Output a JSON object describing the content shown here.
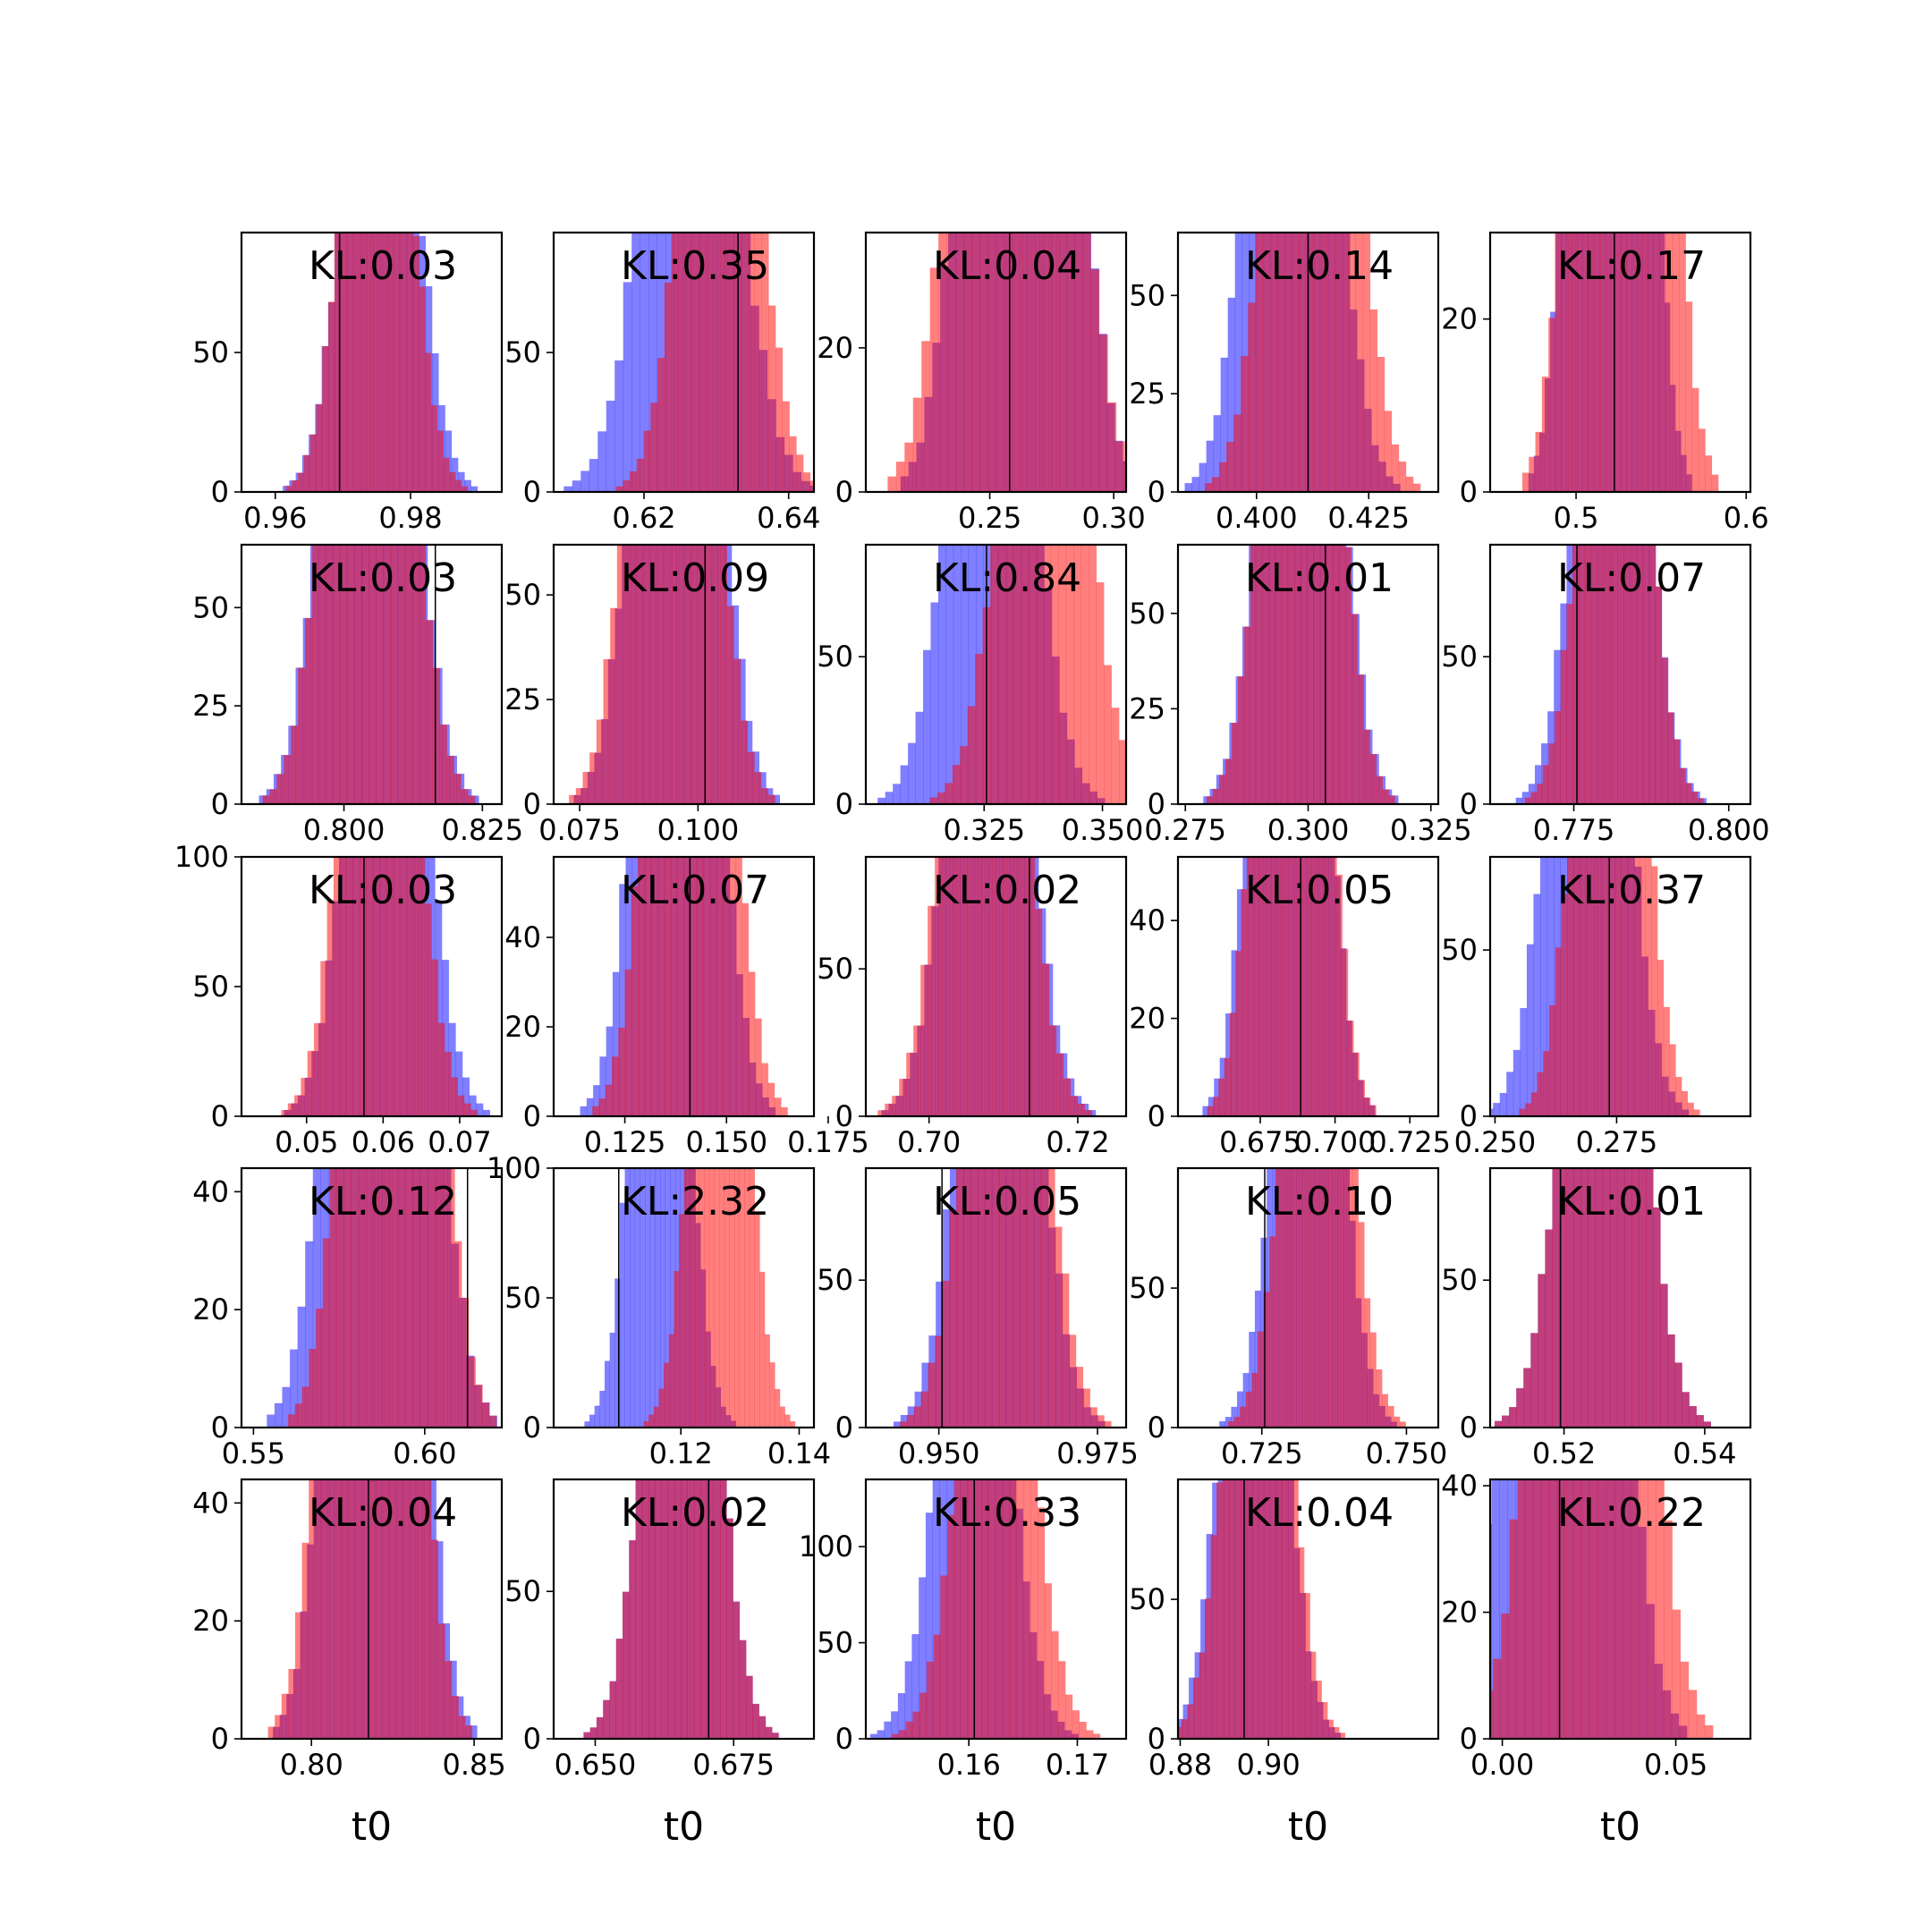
{
  "colors": {
    "blue": "#0000ff",
    "red": "#ff0000",
    "truth_line": "#000000",
    "axes": "#000000"
  },
  "chart_data": [
    {
      "type": "bar",
      "kl": "KL:0.03",
      "truth": 0.9695,
      "xlim": [
        0.955,
        0.9935
      ],
      "ylim": [
        0,
        93
      ],
      "xticks": [
        0.96,
        0.98
      ],
      "xtick_labels": [
        "0.96",
        "0.98"
      ],
      "yticks": [
        0,
        50
      ],
      "ytick_labels": [
        "0",
        "50"
      ],
      "blue": {
        "mu": 0.9755,
        "sd": 0.0045,
        "n": 3000
      },
      "red": {
        "mu": 0.975,
        "sd": 0.0042,
        "n": 3000
      }
    },
    {
      "type": "bar",
      "kl": "KL:0.35",
      "truth": 0.633,
      "xlim": [
        0.6075,
        0.6435
      ],
      "ylim": [
        0,
        93
      ],
      "xticks": [
        0.62,
        0.64
      ],
      "xtick_labels": [
        "0.62",
        "0.64"
      ],
      "yticks": [
        0,
        50
      ],
      "ytick_labels": [
        "0",
        "50"
      ],
      "blue": {
        "mu": 0.6265,
        "sd": 0.0055,
        "n": 3000
      },
      "red": {
        "mu": 0.6305,
        "sd": 0.0045,
        "n": 3000
      }
    },
    {
      "type": "bar",
      "kl": "KL:0.04",
      "truth": 0.258,
      "xlim": [
        0.2,
        0.305
      ],
      "ylim": [
        0,
        36
      ],
      "xticks": [
        0.25,
        0.3
      ],
      "xtick_labels": [
        "0.25",
        "0.30"
      ],
      "yticks": [
        0,
        20
      ],
      "ytick_labels": [
        "0",
        "20"
      ],
      "blue": {
        "mu": 0.262,
        "sd": 0.015,
        "n": 3000
      },
      "red": {
        "mu": 0.26,
        "sd": 0.016,
        "n": 3000
      }
    },
    {
      "type": "bar",
      "kl": "KL:0.14",
      "truth": 0.4115,
      "xlim": [
        0.3825,
        0.4405
      ],
      "ylim": [
        0,
        66
      ],
      "xticks": [
        0.4,
        0.425
      ],
      "xtick_labels": [
        "0.400",
        "0.425"
      ],
      "yticks": [
        0,
        25,
        50
      ],
      "ytick_labels": [
        "0",
        "25",
        "50"
      ],
      "blue": {
        "mu": 0.408,
        "sd": 0.0075,
        "n": 3000
      },
      "red": {
        "mu": 0.4125,
        "sd": 0.0075,
        "n": 3000
      }
    },
    {
      "type": "bar",
      "kl": "KL:0.17",
      "truth": 0.5225,
      "xlim": [
        0.4495,
        0.6025
      ],
      "ylim": [
        0,
        30
      ],
      "xticks": [
        0.5,
        0.6
      ],
      "xtick_labels": [
        "0.5",
        "0.6"
      ],
      "yticks": [
        0,
        20
      ],
      "ytick_labels": [
        "0",
        "20"
      ],
      "blue": {
        "mu": 0.52,
        "sd": 0.015,
        "n": 3000
      },
      "red": {
        "mu": 0.526,
        "sd": 0.018,
        "n": 3000
      }
    },
    {
      "type": "bar",
      "kl": "KL:0.03",
      "truth": 0.8165,
      "xlim": [
        0.7815,
        0.8285
      ],
      "ylim": [
        0,
        66
      ],
      "xticks": [
        0.8,
        0.825
      ],
      "xtick_labels": [
        "0.800",
        "0.825"
      ],
      "yticks": [
        0,
        25,
        50
      ],
      "ytick_labels": [
        "0",
        "25",
        "50"
      ],
      "blue": {
        "mu": 0.8045,
        "sd": 0.0062,
        "n": 3000
      },
      "red": {
        "mu": 0.8045,
        "sd": 0.006,
        "n": 3000
      }
    },
    {
      "type": "bar",
      "kl": "KL:0.09",
      "truth": 0.1015,
      "xlim": [
        0.0695,
        0.1245
      ],
      "ylim": [
        0,
        62
      ],
      "xticks": [
        0.075,
        0.1
      ],
      "xtick_labels": [
        "0.075",
        "0.100"
      ],
      "yticks": [
        0,
        25,
        50
      ],
      "ytick_labels": [
        "0",
        "25",
        "50"
      ],
      "blue": {
        "mu": 0.0955,
        "sd": 0.0068,
        "n": 3000
      },
      "red": {
        "mu": 0.0945,
        "sd": 0.0068,
        "n": 3000
      }
    },
    {
      "type": "bar",
      "kl": "KL:0.84",
      "truth": 0.3255,
      "xlim": [
        0.3,
        0.355
      ],
      "ylim": [
        0,
        88
      ],
      "xticks": [
        0.325,
        0.35
      ],
      "xtick_labels": [
        "0.325",
        "0.350"
      ],
      "yticks": [
        0,
        50
      ],
      "ytick_labels": [
        "0",
        "50"
      ],
      "blue": {
        "mu": 0.3265,
        "sd": 0.0075,
        "n": 3000
      },
      "red": {
        "mu": 0.3375,
        "sd": 0.0075,
        "n": 3000
      }
    },
    {
      "type": "bar",
      "kl": "KL:0.01",
      "truth": 0.3035,
      "xlim": [
        0.2735,
        0.3265
      ],
      "ylim": [
        0,
        68
      ],
      "xticks": [
        0.275,
        0.3,
        0.325
      ],
      "xtick_labels": [
        "0.275",
        "0.300",
        "0.325"
      ],
      "yticks": [
        0,
        25,
        50
      ],
      "ytick_labels": [
        "0",
        "25",
        "50"
      ],
      "blue": {
        "mu": 0.2985,
        "sd": 0.0062,
        "n": 3000
      },
      "red": {
        "mu": 0.2985,
        "sd": 0.006,
        "n": 3000
      }
    },
    {
      "type": "bar",
      "kl": "KL:0.07",
      "truth": 0.7755,
      "xlim": [
        0.7615,
        0.8035
      ],
      "ylim": [
        0,
        88
      ],
      "xticks": [
        0.775,
        0.8
      ],
      "xtick_labels": [
        "0.775",
        "0.800"
      ],
      "yticks": [
        0,
        50
      ],
      "ytick_labels": [
        "0",
        "50"
      ],
      "blue": {
        "mu": 0.781,
        "sd": 0.0048,
        "n": 3000
      },
      "red": {
        "mu": 0.7815,
        "sd": 0.0045,
        "n": 3000
      }
    },
    {
      "type": "bar",
      "kl": "KL:0.03",
      "truth": 0.0575,
      "xlim": [
        0.0415,
        0.0755
      ],
      "ylim": [
        0,
        100
      ],
      "xticks": [
        0.05,
        0.06,
        0.07
      ],
      "xtick_labels": [
        "0.05",
        "0.06",
        "0.07"
      ],
      "yticks": [
        0,
        50,
        100
      ],
      "ytick_labels": [
        "0",
        "50",
        "100"
      ],
      "blue": {
        "mu": 0.0605,
        "sd": 0.0042,
        "n": 3500
      },
      "red": {
        "mu": 0.0595,
        "sd": 0.004,
        "n": 3500
      }
    },
    {
      "type": "bar",
      "kl": "KL:0.07",
      "truth": 0.141,
      "xlim": [
        0.1075,
        0.1715
      ],
      "ylim": [
        0,
        58
      ],
      "xticks": [
        0.125,
        0.15,
        0.175
      ],
      "xtick_labels": [
        "0.125",
        "0.150",
        "0.175"
      ],
      "yticks": [
        0,
        20,
        40
      ],
      "ytick_labels": [
        "0",
        "20",
        "40"
      ],
      "blue": {
        "mu": 0.138,
        "sd": 0.0075,
        "n": 3000
      },
      "red": {
        "mu": 0.141,
        "sd": 0.0075,
        "n": 3000
      }
    },
    {
      "type": "bar",
      "kl": "KL:0.02",
      "truth": 0.7135,
      "xlim": [
        0.6915,
        0.7265
      ],
      "ylim": [
        0,
        88
      ],
      "xticks": [
        0.7,
        0.72
      ],
      "xtick_labels": [
        "0.70",
        "0.72"
      ],
      "yticks": [
        0,
        50
      ],
      "ytick_labels": [
        "0",
        "50"
      ],
      "blue": {
        "mu": 0.708,
        "sd": 0.0045,
        "n": 3000
      },
      "red": {
        "mu": 0.7075,
        "sd": 0.0045,
        "n": 3000
      }
    },
    {
      "type": "bar",
      "kl": "KL:0.05",
      "truth": 0.6885,
      "xlim": [
        0.6475,
        0.7345
      ],
      "ylim": [
        0,
        53
      ],
      "xticks": [
        0.675,
        0.7,
        0.725
      ],
      "xtick_labels": [
        "0.675",
        "0.700",
        "0.725"
      ],
      "yticks": [
        0,
        20,
        40
      ],
      "ytick_labels": [
        "0",
        "20",
        "40"
      ],
      "blue": {
        "mu": 0.6845,
        "sd": 0.009,
        "n": 3000
      },
      "red": {
        "mu": 0.6855,
        "sd": 0.0088,
        "n": 3000
      }
    },
    {
      "type": "bar",
      "kl": "KL:0.37",
      "truth": 0.2735,
      "xlim": [
        0.249,
        0.3025
      ],
      "ylim": [
        0,
        78
      ],
      "xticks": [
        0.25,
        0.275
      ],
      "xtick_labels": [
        "0.250",
        "0.275"
      ],
      "yticks": [
        0,
        50
      ],
      "ytick_labels": [
        "0",
        "50"
      ],
      "blue": {
        "mu": 0.269,
        "sd": 0.0065,
        "n": 3000
      },
      "red": {
        "mu": 0.2735,
        "sd": 0.0058,
        "n": 3000
      }
    },
    {
      "type": "bar",
      "kl": "KL:0.12",
      "truth": 0.6125,
      "xlim": [
        0.5465,
        0.6225
      ],
      "ylim": [
        0,
        44
      ],
      "xticks": [
        0.55,
        0.6
      ],
      "xtick_labels": [
        "0.55",
        "0.60"
      ],
      "yticks": [
        0,
        20,
        40
      ],
      "ytick_labels": [
        "0",
        "20",
        "40"
      ],
      "blue": {
        "mu": 0.5875,
        "sd": 0.0105,
        "n": 3000
      },
      "red": {
        "mu": 0.5905,
        "sd": 0.0095,
        "n": 3000
      }
    },
    {
      "type": "bar",
      "kl": "KL:2.32",
      "truth": 0.1095,
      "xlim": [
        0.0985,
        0.1425
      ],
      "ylim": [
        0,
        100
      ],
      "xticks": [
        0.12,
        0.14
      ],
      "xtick_labels": [
        "0.12",
        "0.14"
      ],
      "yticks": [
        0,
        50,
        100
      ],
      "ytick_labels": [
        "0",
        "50",
        "100"
      ],
      "blue": {
        "mu": 0.1165,
        "sd": 0.004,
        "n": 3500
      },
      "red": {
        "mu": 0.1265,
        "sd": 0.004,
        "n": 3500
      }
    },
    {
      "type": "bar",
      "kl": "KL:0.05",
      "truth": 0.9505,
      "xlim": [
        0.9385,
        0.9795
      ],
      "ylim": [
        0,
        88
      ],
      "xticks": [
        0.95,
        0.975
      ],
      "xtick_labels": [
        "0.950",
        "0.975"
      ],
      "yticks": [
        0,
        50
      ],
      "ytick_labels": [
        "0",
        "50"
      ],
      "blue": {
        "mu": 0.9595,
        "sd": 0.0052,
        "n": 3000
      },
      "red": {
        "mu": 0.9605,
        "sd": 0.0052,
        "n": 3000
      }
    },
    {
      "type": "bar",
      "kl": "KL:0.10",
      "truth": 0.7255,
      "xlim": [
        0.7105,
        0.7555
      ],
      "ylim": [
        0,
        93
      ],
      "xticks": [
        0.725,
        0.75
      ],
      "xtick_labels": [
        "0.725",
        "0.750"
      ],
      "yticks": [
        0,
        50
      ],
      "ytick_labels": [
        "0",
        "50"
      ],
      "blue": {
        "mu": 0.733,
        "sd": 0.0048,
        "n": 3000
      },
      "red": {
        "mu": 0.7345,
        "sd": 0.0048,
        "n": 3000
      }
    },
    {
      "type": "bar",
      "kl": "KL:0.01",
      "truth": 0.5195,
      "xlim": [
        0.5095,
        0.5465
      ],
      "ylim": [
        0,
        88
      ],
      "xticks": [
        0.52,
        0.54
      ],
      "xtick_labels": [
        "0.52",
        "0.54"
      ],
      "yticks": [
        0,
        50
      ],
      "ytick_labels": [
        "0",
        "50"
      ],
      "blue": {
        "mu": 0.5255,
        "sd": 0.0048,
        "n": 3000
      },
      "red": {
        "mu": 0.5255,
        "sd": 0.0048,
        "n": 3000
      }
    },
    {
      "type": "bar",
      "kl": "KL:0.04",
      "truth": 0.8175,
      "xlim": [
        0.7785,
        0.8585
      ],
      "ylim": [
        0,
        44
      ],
      "xticks": [
        0.8,
        0.85
      ],
      "xtick_labels": [
        "0.80",
        "0.85"
      ],
      "yticks": [
        0,
        20,
        40
      ],
      "ytick_labels": [
        "0",
        "20",
        "40"
      ],
      "blue": {
        "mu": 0.8195,
        "sd": 0.0098,
        "n": 3000
      },
      "red": {
        "mu": 0.818,
        "sd": 0.0098,
        "n": 3000
      }
    },
    {
      "type": "bar",
      "kl": "KL:0.02",
      "truth": 0.6705,
      "xlim": [
        0.6425,
        0.6895
      ],
      "ylim": [
        0,
        88
      ],
      "xticks": [
        0.65,
        0.675
      ],
      "xtick_labels": [
        "0.650",
        "0.675"
      ],
      "yticks": [
        0,
        50
      ],
      "ytick_labels": [
        "0",
        "50"
      ],
      "blue": {
        "mu": 0.6655,
        "sd": 0.0055,
        "n": 3000
      },
      "red": {
        "mu": 0.6655,
        "sd": 0.0055,
        "n": 3000
      }
    },
    {
      "type": "bar",
      "kl": "KL:0.33",
      "truth": 0.1605,
      "xlim": [
        0.1505,
        0.1745
      ],
      "ylim": [
        0,
        135
      ],
      "xticks": [
        0.16,
        0.17
      ],
      "xtick_labels": [
        "0.16",
        "0.17"
      ],
      "yticks": [
        0,
        50,
        100
      ],
      "ytick_labels": [
        "0",
        "50",
        "100"
      ],
      "blue": {
        "mu": 0.1605,
        "sd": 0.003,
        "n": 3500
      },
      "red": {
        "mu": 0.1625,
        "sd": 0.003,
        "n": 3500
      }
    },
    {
      "type": "bar",
      "kl": "KL:0.04",
      "truth": 0.8945,
      "xlim": [
        0.8795,
        0.9385
      ],
      "ylim": [
        0,
        93
      ],
      "xticks": [
        0.88,
        0.9
      ],
      "xtick_labels": [
        "0.88",
        "0.90"
      ],
      "yticks": [
        0,
        50
      ],
      "ytick_labels": [
        "0",
        "50"
      ],
      "blue": {
        "mu": 0.8965,
        "sd": 0.0062,
        "n": 3000
      },
      "red": {
        "mu": 0.8975,
        "sd": 0.0062,
        "n": 3000
      }
    },
    {
      "type": "bar",
      "kl": "KL:0.22",
      "truth": 0.0165,
      "xlim": [
        -0.0035,
        0.0715
      ],
      "ylim": [
        0,
        41
      ],
      "xticks": [
        0.0,
        0.05
      ],
      "xtick_labels": [
        "0.00",
        "0.05"
      ],
      "yticks": [
        0,
        20,
        40
      ],
      "ytick_labels": [
        "0",
        "20",
        "40"
      ],
      "blue": {
        "mu": 0.018,
        "sd": 0.011,
        "n": 3000
      },
      "red": {
        "mu": 0.0255,
        "sd": 0.011,
        "n": 3000
      }
    }
  ],
  "xlabels": [
    "t0",
    "t0",
    "t0",
    "t0",
    "t0"
  ]
}
